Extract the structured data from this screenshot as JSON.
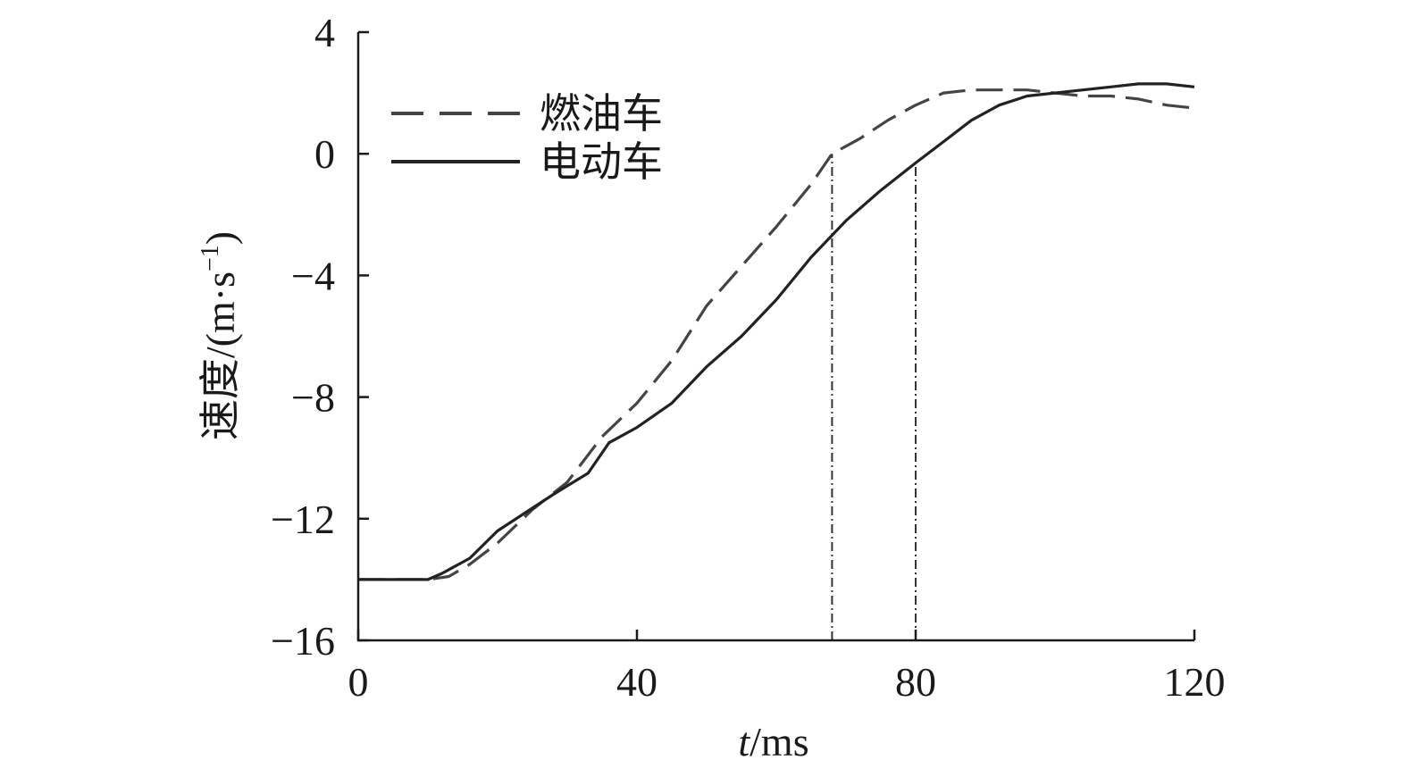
{
  "chart_data": {
    "type": "line",
    "xlabel_italic": "t",
    "xlabel_unit": "/ms",
    "ylabel_text": "速度/(m·s",
    "ylabel_sup": "−1",
    "ylabel_close": ")",
    "xlim": [
      0,
      120
    ],
    "ylim": [
      -16,
      4
    ],
    "x_ticks": [
      0,
      40,
      80,
      120
    ],
    "x_tick_labels": [
      "0",
      "40",
      "80",
      "120"
    ],
    "y_ticks": [
      4,
      0,
      -4,
      -8,
      -12,
      -16
    ],
    "y_tick_labels": [
      "4",
      "0",
      "−4",
      "−8",
      "−12",
      "−16"
    ],
    "grid": false,
    "legend_position": "top-left",
    "series": [
      {
        "name": "燃油车",
        "style": "dashed",
        "color": "#444444",
        "points": [
          [
            0,
            -14
          ],
          [
            10,
            -14
          ],
          [
            13,
            -13.9
          ],
          [
            16,
            -13.5
          ],
          [
            20,
            -12.8
          ],
          [
            25,
            -11.7
          ],
          [
            30,
            -10.8
          ],
          [
            32,
            -10.2
          ],
          [
            35,
            -9.3
          ],
          [
            40,
            -8.2
          ],
          [
            45,
            -6.8
          ],
          [
            50,
            -5.0
          ],
          [
            55,
            -3.7
          ],
          [
            60,
            -2.4
          ],
          [
            65,
            -1.0
          ],
          [
            68,
            0
          ],
          [
            72,
            0.5
          ],
          [
            76,
            1.1
          ],
          [
            80,
            1.6
          ],
          [
            84,
            2.0
          ],
          [
            88,
            2.1
          ],
          [
            92,
            2.1
          ],
          [
            96,
            2.1
          ],
          [
            100,
            2.0
          ],
          [
            104,
            1.9
          ],
          [
            108,
            1.9
          ],
          [
            112,
            1.8
          ],
          [
            116,
            1.6
          ],
          [
            120,
            1.5
          ]
        ]
      },
      {
        "name": "电动车",
        "style": "solid",
        "color": "#222222",
        "points": [
          [
            0,
            -14
          ],
          [
            10,
            -14
          ],
          [
            12,
            -13.8
          ],
          [
            16,
            -13.3
          ],
          [
            20,
            -12.4
          ],
          [
            24,
            -11.8
          ],
          [
            28,
            -11.2
          ],
          [
            33,
            -10.5
          ],
          [
            36,
            -9.5
          ],
          [
            40,
            -9.0
          ],
          [
            45,
            -8.2
          ],
          [
            50,
            -7.0
          ],
          [
            55,
            -6.0
          ],
          [
            60,
            -4.8
          ],
          [
            65,
            -3.4
          ],
          [
            70,
            -2.2
          ],
          [
            75,
            -1.2
          ],
          [
            80,
            -0.3
          ],
          [
            84,
            0.4
          ],
          [
            88,
            1.1
          ],
          [
            92,
            1.6
          ],
          [
            96,
            1.9
          ],
          [
            100,
            2.0
          ],
          [
            104,
            2.1
          ],
          [
            108,
            2.2
          ],
          [
            112,
            2.3
          ],
          [
            116,
            2.3
          ],
          [
            120,
            2.2
          ]
        ]
      }
    ],
    "reference_lines": [
      {
        "x": 68,
        "y_from": -16,
        "y_to": 0
      },
      {
        "x": 80,
        "y_from": -16,
        "y_to": -0.2
      }
    ]
  }
}
